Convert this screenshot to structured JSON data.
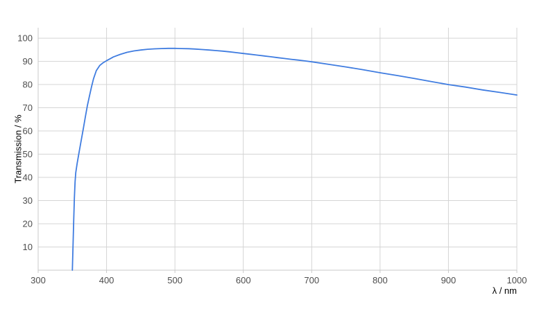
{
  "page": {
    "background": "#ffffff"
  },
  "chart_data": {
    "type": "line",
    "title": "",
    "xlabel": "λ / nm",
    "ylabel": "Transmission / %",
    "xlim": [
      300,
      1000
    ],
    "ylim": [
      0,
      104.5
    ],
    "x_ticks": [
      300,
      400,
      500,
      600,
      700,
      800,
      900,
      1000
    ],
    "y_ticks": [
      10,
      20,
      30,
      40,
      50,
      60,
      70,
      80,
      90,
      100
    ],
    "grid": true,
    "legend": false,
    "line_color": "#3f7ce0",
    "grid_color": "#d4d4d4",
    "axis_color": "#c9c9c9",
    "text_color": "#4d4d4d",
    "series": [
      {
        "name": "Transmission",
        "points": [
          [
            350,
            0
          ],
          [
            351,
            11
          ],
          [
            352,
            22
          ],
          [
            353,
            31
          ],
          [
            354,
            38
          ],
          [
            355,
            42
          ],
          [
            357,
            46
          ],
          [
            360,
            51
          ],
          [
            363,
            56
          ],
          [
            366,
            61
          ],
          [
            369,
            66
          ],
          [
            372,
            71
          ],
          [
            375,
            75
          ],
          [
            378,
            79
          ],
          [
            381,
            82.5
          ],
          [
            385,
            86
          ],
          [
            390,
            88.2
          ],
          [
            395,
            89.4
          ],
          [
            400,
            90.3
          ],
          [
            405,
            91.1
          ],
          [
            410,
            91.9
          ],
          [
            420,
            93.0
          ],
          [
            430,
            93.9
          ],
          [
            440,
            94.5
          ],
          [
            450,
            94.9
          ],
          [
            460,
            95.2
          ],
          [
            470,
            95.4
          ],
          [
            480,
            95.5
          ],
          [
            490,
            95.6
          ],
          [
            500,
            95.6
          ],
          [
            510,
            95.5
          ],
          [
            520,
            95.45
          ],
          [
            530,
            95.3
          ],
          [
            540,
            95.1
          ],
          [
            550,
            94.9
          ],
          [
            560,
            94.65
          ],
          [
            570,
            94.4
          ],
          [
            580,
            94.1
          ],
          [
            590,
            93.75
          ],
          [
            600,
            93.4
          ],
          [
            610,
            93.05
          ],
          [
            620,
            92.7
          ],
          [
            630,
            92.35
          ],
          [
            640,
            92.0
          ],
          [
            650,
            91.6
          ],
          [
            660,
            91.25
          ],
          [
            670,
            90.9
          ],
          [
            680,
            90.55
          ],
          [
            690,
            90.2
          ],
          [
            700,
            89.8
          ],
          [
            725,
            88.7
          ],
          [
            750,
            87.6
          ],
          [
            775,
            86.4
          ],
          [
            800,
            85.1
          ],
          [
            825,
            83.9
          ],
          [
            850,
            82.6
          ],
          [
            875,
            81.3
          ],
          [
            900,
            80.0
          ],
          [
            925,
            78.9
          ],
          [
            950,
            77.7
          ],
          [
            975,
            76.6
          ],
          [
            1000,
            75.5
          ]
        ]
      }
    ]
  }
}
